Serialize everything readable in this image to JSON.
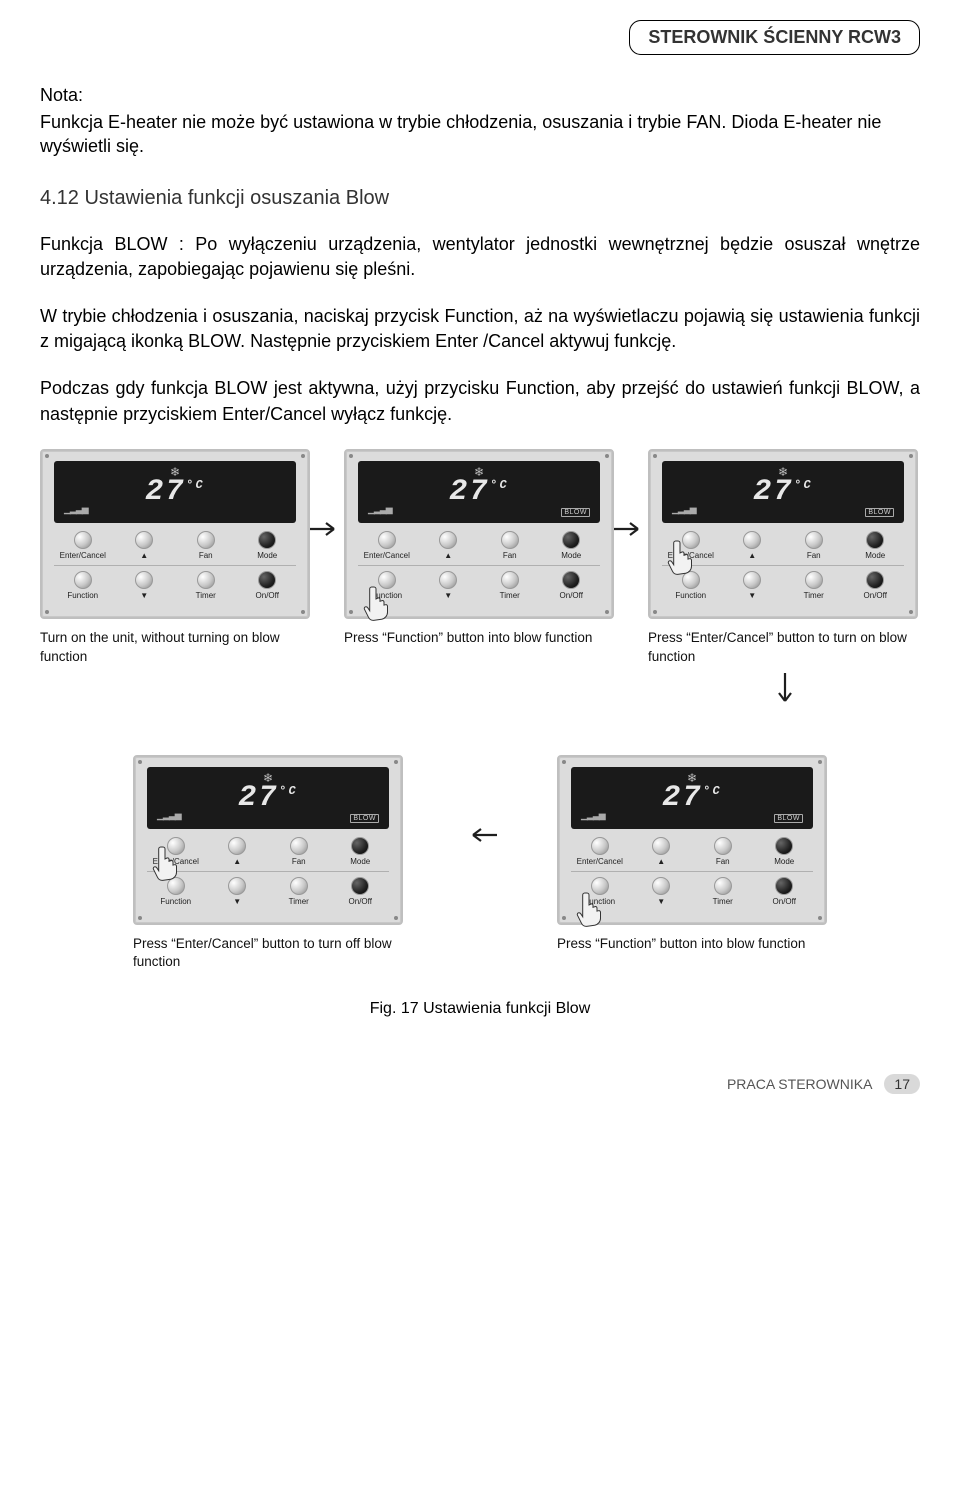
{
  "header": {
    "tab": "STEROWNIK ŚCIENNY RCW3"
  },
  "nota": {
    "label": "Nota:",
    "text": "Funkcja E-heater nie może być ustawiona w trybie chłodzenia, osuszania i trybie FAN. Dioda E-heater nie wyświetli się."
  },
  "section": {
    "title": "4.12  Ustawienia funkcji osuszania Blow"
  },
  "para1": "Funkcja  BLOW : Po wyłączeniu urządzenia, wentylator jednostki wewnętrznej będzie osuszał wnętrze urządzenia, zapobiegając pojawienu się pleśni.",
  "para2": "W trybie chłodzenia i osuszania, naciskaj  przycisk Function, aż na wyświetlaczu pojawią się ustawienia funkcji z migającą ikonką BLOW. Następnie przyciskiem Enter /Cancel aktywuj funkcję.",
  "para3": "Podczas gdy funkcja BLOW jest aktywna, użyj przycisku Function, aby przejść do ustawień funkcji BLOW, a następnie przyciskiem Enter/Cancel wyłącz funkcję.",
  "panel": {
    "temp": "27",
    "unit": "°C",
    "blow_tag": "BLOW",
    "buttons_top": [
      "Enter/Cancel",
      "▲",
      "Fan",
      "Mode"
    ],
    "buttons_bottom": [
      "Function",
      "▼",
      "Timer",
      "On/Off"
    ]
  },
  "captions": {
    "c1": "Turn on the unit, without turning on blow function",
    "c2": "Press “Function” button into blow function",
    "c3": "Press “Enter/Cancel” button to turn on blow function",
    "c4": "Press “Enter/Cancel” button to turn off blow function",
    "c5": "Press “Function” button into blow function"
  },
  "figure": {
    "label": "Fig. 17 Ustawienia funkcji Blow"
  },
  "footer": {
    "section": "PRACA STEROWNIKA",
    "page": "17"
  },
  "colors": {
    "panel_bg": "#dcdcdc",
    "lcd_bg": "#1a1a1a",
    "lcd_fg": "#e8e8e8",
    "arrow": "#1e1e1e"
  }
}
